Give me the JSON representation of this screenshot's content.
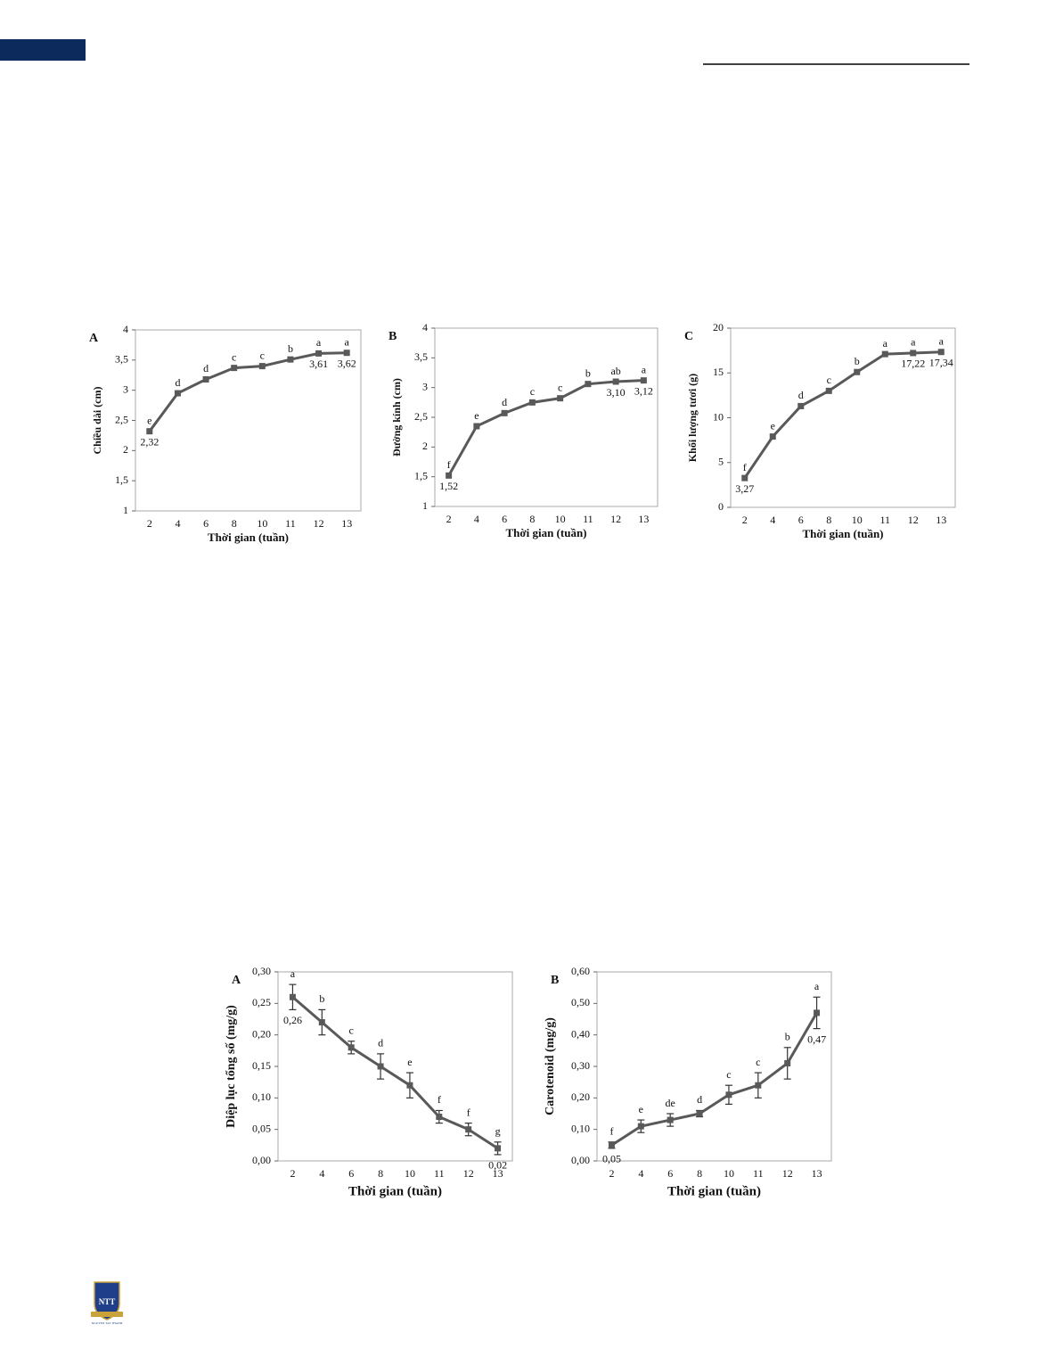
{
  "chart_data": [
    {
      "type": "line",
      "panel": "A",
      "ylabel": "Chiều dài (cm)",
      "xlabel": "Thời gian (tuần)",
      "categories": [
        "2",
        "4",
        "6",
        "8",
        "10",
        "11",
        "12",
        "13"
      ],
      "values": [
        2.32,
        2.95,
        3.18,
        3.37,
        3.4,
        3.51,
        3.61,
        3.62
      ],
      "value_labels": [
        "2,32",
        null,
        null,
        null,
        null,
        null,
        "3,61",
        "3,62"
      ],
      "letters": [
        "e",
        "d",
        "d",
        "c",
        "c",
        "b",
        "a",
        "a"
      ],
      "color": "#595959",
      "ylim": [
        1,
        4
      ],
      "yticks": [
        1,
        {
          "value": 1.5,
          "label": "1,5"
        },
        2,
        {
          "value": 2.5,
          "label": "2,5"
        },
        3,
        {
          "value": 3.5,
          "label": "3,5"
        },
        4
      ]
    },
    {
      "type": "line",
      "panel": "B",
      "ylabel": "Đường kính (cm)",
      "xlabel": "Thời gian (tuần)",
      "categories": [
        "2",
        "4",
        "6",
        "8",
        "10",
        "11",
        "12",
        "13"
      ],
      "values": [
        1.52,
        2.35,
        2.57,
        2.75,
        2.82,
        3.06,
        3.1,
        3.12
      ],
      "value_labels": [
        "1,52",
        null,
        null,
        null,
        null,
        null,
        "3,10",
        "3,12"
      ],
      "letters": [
        "f",
        "e",
        "d",
        "c",
        "c",
        "b",
        "ab",
        "a"
      ],
      "color": "#595959",
      "ylim": [
        1,
        4
      ],
      "yticks": [
        1,
        {
          "value": 1.5,
          "label": "1,5"
        },
        2,
        {
          "value": 2.5,
          "label": "2,5"
        },
        3,
        {
          "value": 3.5,
          "label": "3,5"
        },
        4
      ]
    },
    {
      "type": "line",
      "panel": "C",
      "ylabel": "Khối lượng tươi (g)",
      "xlabel": "Thời gian (tuần)",
      "categories": [
        "2",
        "4",
        "6",
        "8",
        "10",
        "11",
        "12",
        "13"
      ],
      "values": [
        3.27,
        7.9,
        11.3,
        13.0,
        15.1,
        17.1,
        17.22,
        17.34
      ],
      "value_labels": [
        "3,27",
        null,
        null,
        null,
        null,
        null,
        "17,22",
        "17,34"
      ],
      "letters": [
        "f",
        "e",
        "d",
        "c",
        "b",
        "a",
        "a",
        "a"
      ],
      "color": "#595959",
      "ylim": [
        0,
        20
      ],
      "yticks": [
        0,
        5,
        10,
        15,
        20
      ]
    },
    {
      "type": "line",
      "panel": "A",
      "ylabel": "Diệp lục tổng số (mg/g)",
      "xlabel": "Thời gian (tuần)",
      "categories": [
        "2",
        "4",
        "6",
        "8",
        "10",
        "11",
        "12",
        "13"
      ],
      "values": [
        0.26,
        0.22,
        0.18,
        0.15,
        0.12,
        0.07,
        0.05,
        0.02
      ],
      "errors": [
        0.02,
        0.02,
        0.01,
        0.02,
        0.02,
        0.01,
        0.01,
        0.01
      ],
      "value_labels": [
        "0,26",
        null,
        null,
        null,
        null,
        null,
        null,
        "0,02"
      ],
      "letters": [
        "a",
        "b",
        "c",
        "d",
        "e",
        "f",
        "f",
        "g"
      ],
      "color": "#595959",
      "ylim": [
        0,
        0.3
      ],
      "yticks": [
        {
          "value": 0,
          "label": "0,00"
        },
        {
          "value": 0.05,
          "label": "0,05"
        },
        {
          "value": 0.1,
          "label": "0,10"
        },
        {
          "value": 0.15,
          "label": "0,15"
        },
        {
          "value": 0.2,
          "label": "0,20"
        },
        {
          "value": 0.25,
          "label": "0,25"
        },
        {
          "value": 0.3,
          "label": "0,30"
        }
      ]
    },
    {
      "type": "line",
      "panel": "B",
      "ylabel": "Carotenoid (mg/g)",
      "xlabel": "Thời gian (tuần)",
      "categories": [
        "2",
        "4",
        "6",
        "8",
        "10",
        "11",
        "12",
        "13"
      ],
      "values": [
        0.05,
        0.11,
        0.13,
        0.15,
        0.21,
        0.24,
        0.31,
        0.47
      ],
      "errors": [
        0.01,
        0.02,
        0.02,
        0.01,
        0.03,
        0.04,
        0.05,
        0.05
      ],
      "value_labels": [
        "0,05",
        null,
        null,
        null,
        null,
        null,
        null,
        "0,47"
      ],
      "letters": [
        "f",
        "e",
        "de",
        "d",
        "c",
        "c",
        "b",
        "a"
      ],
      "color": "#595959",
      "ylim": [
        0,
        0.6
      ],
      "yticks": [
        {
          "value": 0,
          "label": "0,00"
        },
        {
          "value": 0.1,
          "label": "0,10"
        },
        {
          "value": 0.2,
          "label": "0,20"
        },
        {
          "value": 0.3,
          "label": "0,30"
        },
        {
          "value": 0.4,
          "label": "0,40"
        },
        {
          "value": 0.5,
          "label": "0,50"
        },
        {
          "value": 0.6,
          "label": "0,60"
        }
      ]
    }
  ],
  "logo": {
    "initials": "NTT",
    "name": "NGUYEN TAT THANH"
  }
}
